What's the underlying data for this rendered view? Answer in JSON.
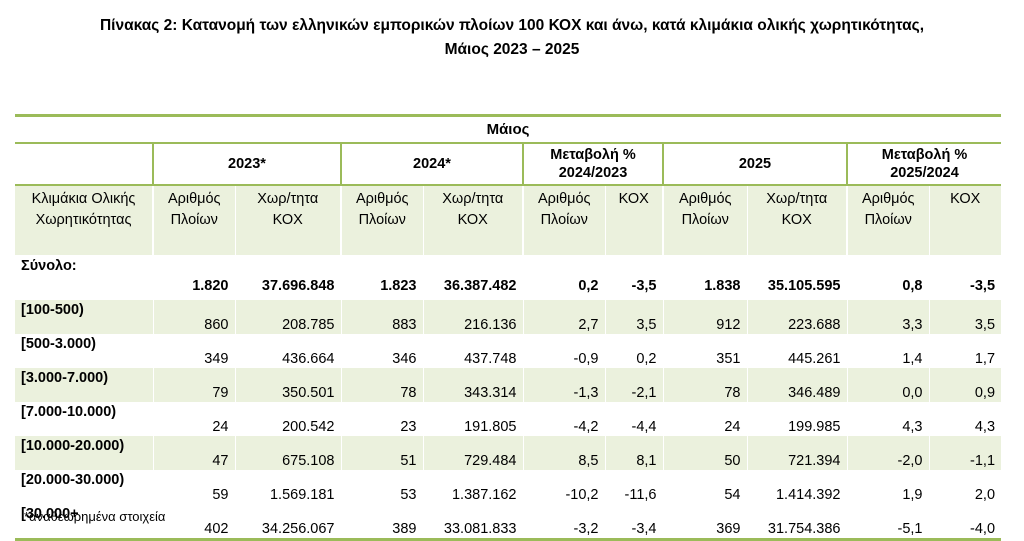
{
  "title_line1": "Πίνακας 2: Κατανομή των ελληνικών εμπορικών πλοίων 100 ΚΟΧ και άνω, κατά κλιμάκια ολικής χωρητικότητας,",
  "title_line2": "Μάιος 2023 – 2025",
  "month_header": "Μάιος",
  "year_headers": [
    "2023*",
    "2024*",
    "Μεταβολή %",
    "2025",
    "Μεταβολή %"
  ],
  "change_periods": [
    "2024/2023",
    "2025/2024"
  ],
  "row_header_label": "Κλιμάκια Ολικής Χωρητικότητας",
  "sub_headers": [
    "Αριθμός Πλοίων",
    "Χωρ/τητα ΚΟΧ",
    "Αριθμός Πλοίων",
    "Χωρ/τητα ΚΟΧ",
    "Αριθμός Πλοίων",
    "ΚΟΧ",
    "Αριθμός Πλοίων",
    "Χωρ/τητα ΚΟΧ",
    "Αριθμός Πλοίων",
    "ΚΟΧ"
  ],
  "rows": [
    {
      "label": "Σύνολο:",
      "cells": [
        "1.820",
        "37.696.848",
        "1.823",
        "36.387.482",
        "0,2",
        "-3,5",
        "1.838",
        "35.105.595",
        "0,8",
        "-3,5"
      ]
    },
    {
      "label": "[100-500)",
      "cells": [
        "860",
        "208.785",
        "883",
        "216.136",
        "2,7",
        "3,5",
        "912",
        "223.688",
        "3,3",
        "3,5"
      ]
    },
    {
      "label": "[500-3.000)",
      "cells": [
        "349",
        "436.664",
        "346",
        "437.748",
        "-0,9",
        "0,2",
        "351",
        "445.261",
        "1,4",
        "1,7"
      ]
    },
    {
      "label": "[3.000-7.000)",
      "cells": [
        "79",
        "350.501",
        "78",
        "343.314",
        "-1,3",
        "-2,1",
        "78",
        "346.489",
        "0,0",
        "0,9"
      ]
    },
    {
      "label": "[7.000-10.000)",
      "cells": [
        "24",
        "200.542",
        "23",
        "191.805",
        "-4,2",
        "-4,4",
        "24",
        "199.985",
        "4,3",
        "4,3"
      ]
    },
    {
      "label": "[10.000-20.000)",
      "cells": [
        "47",
        "675.108",
        "51",
        "729.484",
        "8,5",
        "8,1",
        "50",
        "721.394",
        "-2,0",
        "-1,1"
      ]
    },
    {
      "label": "[20.000-30.000)",
      "cells": [
        "59",
        "1.569.181",
        "53",
        "1.387.162",
        "-10,2",
        "-11,6",
        "54",
        "1.414.392",
        "1,9",
        "2,0"
      ]
    },
    {
      "label": "[30.000+",
      "cells": [
        "402",
        "34.256.067",
        "389",
        "33.081.833",
        "-3,2",
        "-3,4",
        "369",
        "31.754.386",
        "-5,1",
        "-4,0"
      ]
    }
  ],
  "footnote": "*αναθεωρημένα στοιχεία",
  "colors": {
    "accent_line": "#9bbb59",
    "shade": "#ebf1dd"
  }
}
